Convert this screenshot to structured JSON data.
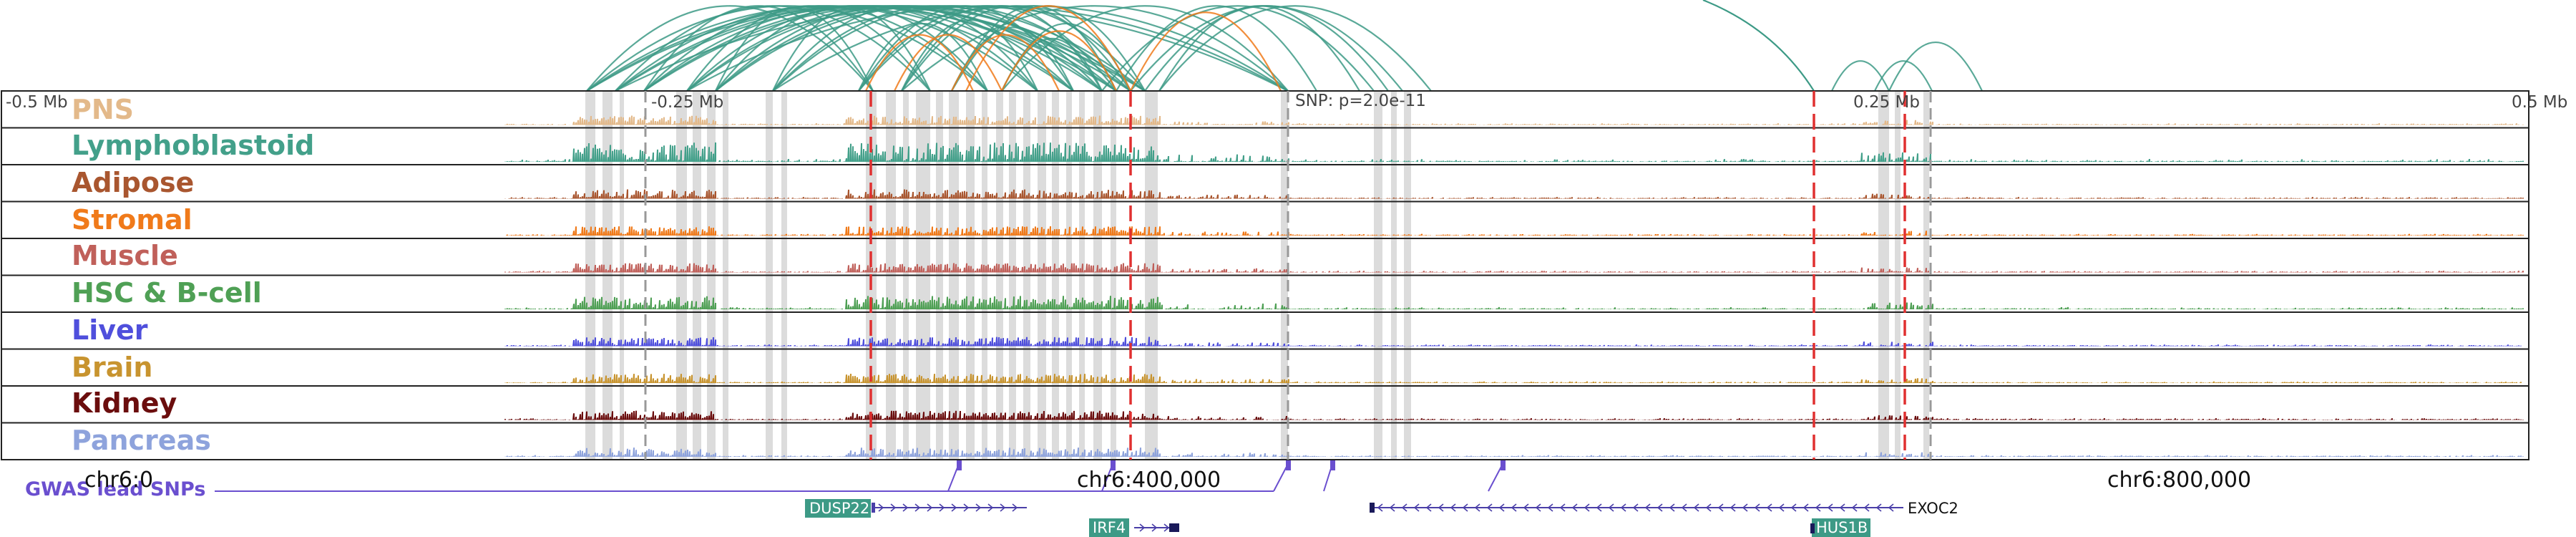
{
  "ruler": {
    "ticks": [
      "-0.5 Mb",
      "-0.25 Mb",
      "SNP: p=2.0e-11",
      "0.25 Mb",
      "0.5 Mb"
    ]
  },
  "tracks": [
    {
      "label": "PNS",
      "color": "#e3b98a"
    },
    {
      "label": "Lymphoblastoid",
      "color": "#43a08a"
    },
    {
      "label": "Adipose",
      "color": "#a9562f"
    },
    {
      "label": "Stromal",
      "color": "#f07a1a"
    },
    {
      "label": "Muscle",
      "color": "#c0605a"
    },
    {
      "label": "HSC & B-cell",
      "color": "#4fa055"
    },
    {
      "label": "Liver",
      "color": "#4f4fdc"
    },
    {
      "label": "Brain",
      "color": "#c8942f"
    },
    {
      "label": "Kidney",
      "color": "#6b0d0d"
    },
    {
      "label": "Pancreas",
      "color": "#8ea3dc"
    }
  ],
  "gwas": {
    "label": "GWAS lead SNPs",
    "color": "#6a4fcf"
  },
  "coordinates": [
    "chr6:0",
    "chr6:400,000",
    "chr6:800,000"
  ],
  "genes": [
    {
      "name": "DUSP22",
      "boxed": true,
      "color": "#3d9a86"
    },
    {
      "name": "IRF4",
      "boxed": true,
      "color": "#3d9a86"
    },
    {
      "name": "EXOC2",
      "boxed": false,
      "color": "#111111"
    },
    {
      "name": "HUS1B",
      "boxed": true,
      "color": "#3d9a86"
    }
  ],
  "colors": {
    "loop_primary": "#3d9a86",
    "loop_highlight": "#f07a1a",
    "marker_red": "#e03030",
    "marker_gray": "#999999",
    "shade": "#dcdcdc",
    "gene_strand": "#4a3fa8"
  }
}
